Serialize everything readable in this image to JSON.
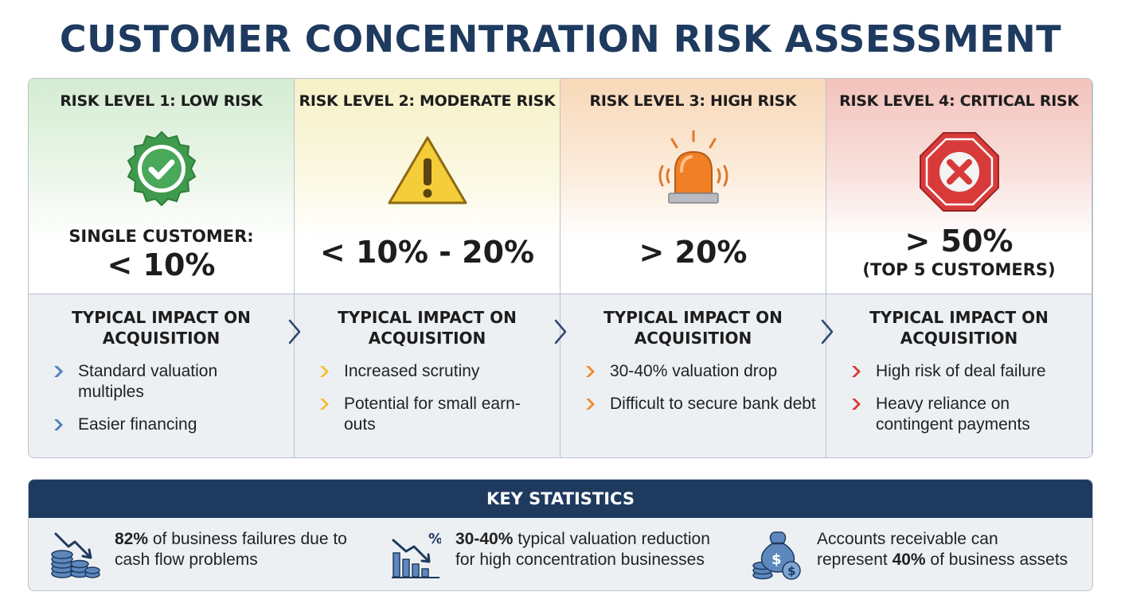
{
  "title": "CUSTOMER CONCENTRATION RISK ASSESSMENT",
  "levels": [
    {
      "title": "RISK LEVEL 1: LOW RISK",
      "icon": "checkmark-badge-icon",
      "color": "#3f9a4d",
      "threshold_label": "SINGLE CUSTOMER:",
      "threshold_value": "< 10%",
      "threshold_note": "",
      "impact_title_1": "TYPICAL IMPACT ON",
      "impact_title_2": "ACQUISITION",
      "impacts": [
        "Standard valuation multiples",
        "Easier financing"
      ]
    },
    {
      "title": "RISK LEVEL 2: MODERATE RISK",
      "icon": "warning-triangle-icon",
      "color": "#f2c12e",
      "threshold_label": "",
      "threshold_value": "< 10% - 20%",
      "threshold_note": "",
      "impact_title_1": "TYPICAL IMPACT ON",
      "impact_title_2": "ACQUISITION",
      "impacts": [
        "Increased scrutiny",
        "Potential for small earn-outs"
      ]
    },
    {
      "title": "RISK LEVEL 3: HIGH RISK",
      "icon": "alarm-siren-icon",
      "color": "#f08a2c",
      "threshold_label": "",
      "threshold_value": "> 20%",
      "threshold_note": "",
      "impact_title_1": "TYPICAL IMPACT ON",
      "impact_title_2": "ACQUISITION",
      "impacts": [
        "30-40% valuation drop",
        "Difficult to secure bank debt"
      ]
    },
    {
      "title": "RISK LEVEL 4: CRITICAL RISK",
      "icon": "stop-octagon-x-icon",
      "color": "#d83a3a",
      "threshold_label": "",
      "threshold_value": "> 50%",
      "threshold_note": "(TOP 5 CUSTOMERS)",
      "impact_title_1": "TYPICAL IMPACT ON",
      "impact_title_2": "ACQUISITION",
      "impacts": [
        "High risk of deal failure",
        "Heavy reliance on contingent payments"
      ]
    }
  ],
  "stats": {
    "header": "KEY STATISTICS",
    "items": [
      {
        "icon": "coins-down-arrow-icon",
        "bold": "82%",
        "line1_rest": " of business failures due to",
        "line2": "cash flow problems"
      },
      {
        "icon": "declining-bar-chart-percent-icon",
        "bold": "30-40%",
        "line1_rest": " typical valuation reduction",
        "line2": "for high concentration businesses"
      },
      {
        "icon": "money-bag-coins-icon",
        "line1": "Accounts receivable can",
        "line2_pre": "represent ",
        "bold": "40%",
        "line2_post": " of business assets"
      }
    ]
  }
}
